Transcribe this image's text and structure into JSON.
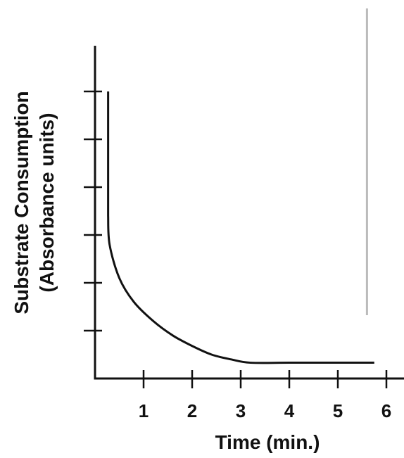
{
  "chart_data": {
    "type": "line",
    "title": "",
    "xlabel": "Time (min.)",
    "ylabel_lines": [
      "Substrate Consumption",
      "(Absorbance units)"
    ],
    "x_ticks": [
      1,
      2,
      3,
      4,
      5,
      6
    ],
    "x_tick_labels": [
      "1",
      "2",
      "3",
      "4",
      "5",
      "6"
    ],
    "xlim": [
      0,
      6
    ],
    "y_tick_count": 6,
    "y_tick_labels": [],
    "grid": false,
    "series": [
      {
        "x": [
          0.27,
          0.27,
          0.3,
          0.5,
          0.8,
          1.2,
          1.6,
          2.0,
          2.4,
          2.8,
          3.2,
          4.0,
          5.0,
          5.75
        ],
        "y": [
          6.0,
          3.4,
          2.8,
          2.1,
          1.6,
          1.2,
          0.9,
          0.68,
          0.5,
          0.4,
          0.33,
          0.33,
          0.33,
          0.33
        ]
      }
    ],
    "reference_line": {
      "x": 5.6,
      "color": "#bbbbbb"
    },
    "colors": {
      "curve": "#111111",
      "axes": "#111111"
    }
  }
}
